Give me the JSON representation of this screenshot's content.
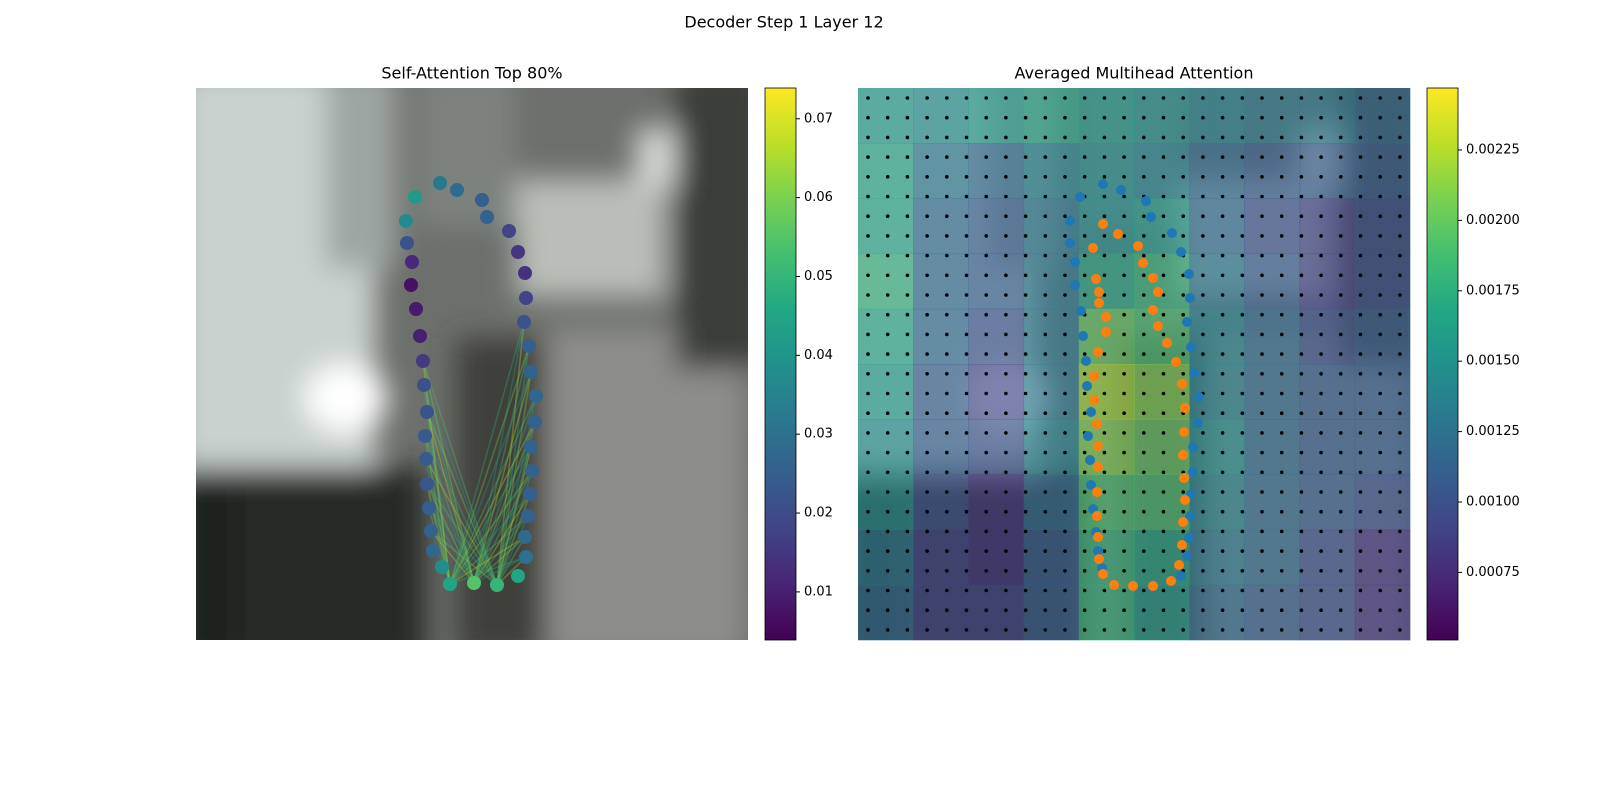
{
  "title": "Decoder Step 1 Layer 12",
  "chart_data": [
    {
      "type": "scatter",
      "title": "Self-Attention Top 80%",
      "xlim": [
        0,
        552
      ],
      "ylim": [
        552,
        0
      ],
      "x": [
        219,
        244,
        261,
        286,
        291,
        313,
        322,
        329,
        330,
        328,
        333,
        335,
        340,
        339,
        335,
        336,
        334,
        332,
        329,
        330,
        322,
        301,
        278,
        254,
        246,
        237,
        235,
        233,
        231,
        230,
        229,
        231,
        228,
        227,
        224,
        220,
        215,
        216,
        211,
        210
      ],
      "y": [
        109,
        95,
        102,
        112,
        129,
        143,
        164,
        185,
        210,
        234,
        258,
        284,
        308,
        334,
        359,
        383,
        406,
        428,
        449,
        469,
        488,
        497,
        495,
        496,
        479,
        463,
        443,
        420,
        396,
        371,
        348,
        324,
        297,
        273,
        248,
        221,
        197,
        174,
        155,
        133
      ],
      "values": [
        0.042,
        0.032,
        0.028,
        0.025,
        0.026,
        0.018,
        0.015,
        0.014,
        0.018,
        0.022,
        0.025,
        0.026,
        0.027,
        0.026,
        0.026,
        0.026,
        0.025,
        0.026,
        0.028,
        0.03,
        0.045,
        0.05,
        0.055,
        0.045,
        0.038,
        0.027,
        0.026,
        0.025,
        0.023,
        0.024,
        0.024,
        0.022,
        0.021,
        0.016,
        0.01,
        0.009,
        0.007,
        0.012,
        0.022,
        0.037
      ],
      "clim": [
        0.0039,
        0.0739
      ],
      "cticks": [
        0.01,
        0.02,
        0.03,
        0.04,
        0.05,
        0.06,
        0.07
      ]
    },
    {
      "type": "heatmap",
      "title": "Averaged Multihead Attention",
      "xlim": [
        0,
        552
      ],
      "ylim": [
        552,
        0
      ],
      "values": [
        [
          0.0016,
          0.0015,
          0.0016,
          0.0017,
          0.0016,
          0.0015,
          0.0014,
          0.0013,
          0.0013,
          0.0012
        ],
        [
          0.0017,
          0.0013,
          0.0012,
          0.0014,
          0.0015,
          0.0014,
          0.0012,
          0.0011,
          0.0011,
          0.0011
        ],
        [
          0.0017,
          0.0012,
          0.0011,
          0.0013,
          0.0015,
          0.0016,
          0.0012,
          0.001,
          0.0009,
          0.001
        ],
        [
          0.0018,
          0.0012,
          0.0011,
          0.0013,
          0.0017,
          0.0018,
          0.0013,
          0.0011,
          0.0009,
          0.001
        ],
        [
          0.0017,
          0.0012,
          0.001,
          0.0013,
          0.002,
          0.0019,
          0.0014,
          0.0012,
          0.001,
          0.0011
        ],
        [
          0.0016,
          0.0011,
          0.0009,
          0.0013,
          0.0022,
          0.0021,
          0.0014,
          0.0012,
          0.0011,
          0.0011
        ],
        [
          0.0015,
          0.0011,
          0.001,
          0.0014,
          0.0021,
          0.002,
          0.0015,
          0.0012,
          0.0011,
          0.0011
        ],
        [
          0.0015,
          0.001,
          0.0008,
          0.0012,
          0.0019,
          0.0019,
          0.0014,
          0.0012,
          0.0011,
          0.001
        ],
        [
          0.0013,
          0.0009,
          0.0008,
          0.0011,
          0.0018,
          0.0017,
          0.0013,
          0.0012,
          0.001,
          0.0008
        ],
        [
          0.0012,
          0.0009,
          0.0009,
          0.0011,
          0.0018,
          0.0016,
          0.0012,
          0.0011,
          0.001,
          0.0008
        ]
      ],
      "clim": [
        0.00051,
        0.00247
      ],
      "cticks": [
        0.00075,
        {
          "value": 0.001,
          "label": "0.00100"
        },
        0.00125,
        {
          "value": 0.0015,
          "label": "0.00150"
        },
        0.00175,
        {
          "value": 0.002,
          "label": "0.00200"
        },
        0.00225
      ],
      "series": [
        {
          "color": "#1f77b4",
          "x": [
            222,
            245,
            263,
            288,
            293,
            314,
            323,
            331,
            332,
            329,
            333,
            336,
            341,
            340,
            335,
            335,
            333,
            332,
            331,
            329,
            323,
            244,
            240,
            238,
            235,
            233,
            232,
            230,
            233,
            229,
            228,
            225,
            223,
            217,
            217,
            212,
            212
          ],
          "y": [
            109,
            96,
            102,
            113,
            129,
            145,
            164,
            186,
            210,
            234,
            259,
            285,
            309,
            335,
            359,
            384,
            406,
            428,
            450,
            468,
            488,
            480,
            463,
            444,
            421,
            397,
            372,
            348,
            324,
            298,
            273,
            248,
            223,
            197,
            174,
            155,
            133
          ]
        },
        {
          "color": "#ff7f0e",
          "x": [
            245,
            260,
            280,
            285,
            295,
            300,
            295,
            300,
            309,
            318,
            324,
            327,
            326,
            325,
            326,
            327,
            325,
            324,
            321,
            313,
            295,
            275,
            256,
            245,
            241,
            240,
            239,
            239,
            240,
            240,
            239,
            236,
            236,
            240,
            248,
            248,
            241,
            241,
            238,
            235
          ],
          "y": [
            136,
            146,
            158,
            175,
            190,
            204,
            222,
            238,
            255,
            274,
            296,
            320,
            344,
            367,
            390,
            412,
            434,
            457,
            477,
            493,
            498,
            498,
            497,
            486,
            471,
            449,
            428,
            404,
            379,
            358,
            336,
            312,
            288,
            264,
            244,
            229,
            215,
            204,
            191,
            160
          ]
        }
      ]
    }
  ]
}
